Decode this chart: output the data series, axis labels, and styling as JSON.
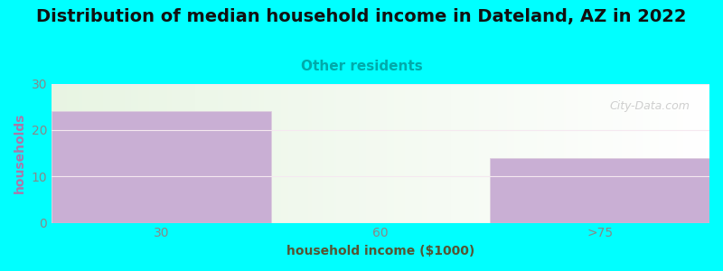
{
  "title": "Distribution of median household income in Dateland, AZ in 2022",
  "subtitle": "Other residents",
  "categories": [
    "30",
    "60",
    ">75"
  ],
  "values": [
    24,
    0,
    14
  ],
  "bar_colors": [
    "#c9afd4",
    "#dff0d8",
    "#c9afd4"
  ],
  "xlabel": "household income ($1000)",
  "ylabel": "households",
  "ylim": [
    0,
    30
  ],
  "yticks": [
    0,
    10,
    20,
    30
  ],
  "background_color": "#00ffff",
  "title_fontsize": 14,
  "subtitle_color": "#00aaaa",
  "subtitle_fontsize": 11,
  "ylabel_color": "#aa77aa",
  "xlabel_color": "#555555",
  "watermark": "City-Data.com",
  "tick_color": "#888888",
  "axis_label_color": "#777755"
}
